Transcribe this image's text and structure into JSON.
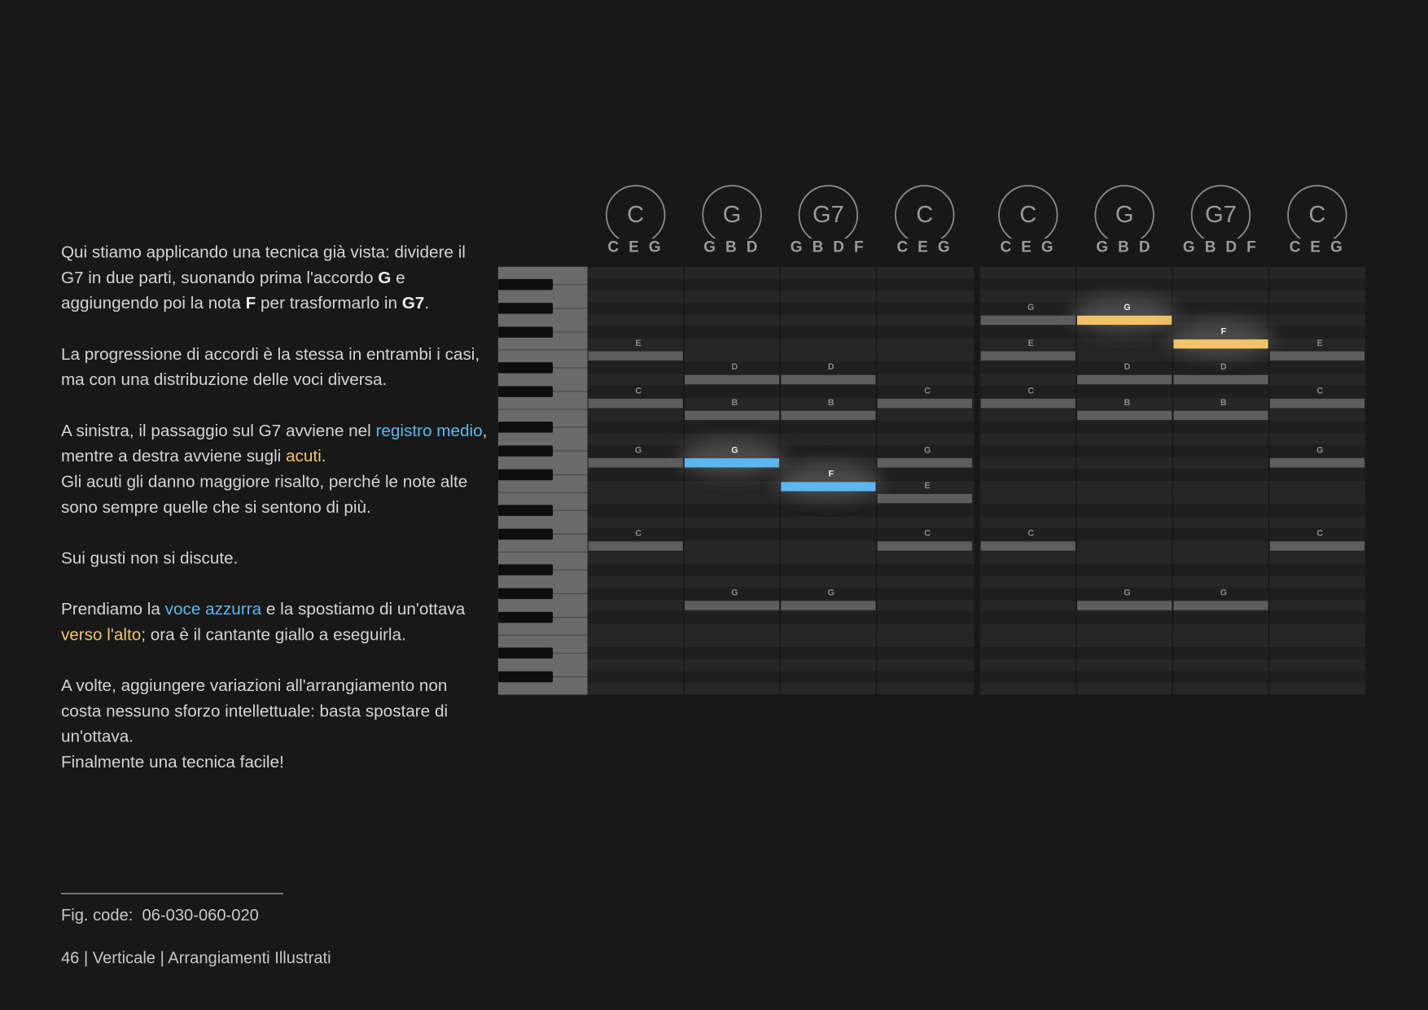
{
  "text": {
    "paragraphs": [
      {
        "lines": [
          [
            {
              "text": "Qui stiamo applicando una tecnica già vista: dividere il G7 in due parti, suonando prima l'accordo ",
              "style": "plain"
            },
            {
              "text": "G",
              "style": "bold"
            },
            {
              "text": " e aggiungendo poi la nota ",
              "style": "plain"
            },
            {
              "text": "F",
              "style": "bold"
            },
            {
              "text": " per trasformarlo in ",
              "style": "plain"
            },
            {
              "text": "G7",
              "style": "bold"
            },
            {
              "text": ".",
              "style": "plain"
            }
          ]
        ]
      },
      {
        "lines": [
          [
            {
              "text": "La progressione di accordi è la stessa in entrambi i casi, ma con una distribuzione delle voci diversa.",
              "style": "plain"
            }
          ]
        ]
      },
      {
        "lines": [
          [
            {
              "text": "A sinistra, il passaggio sul G7 avviene nel ",
              "style": "plain"
            },
            {
              "text": "registro medio",
              "style": "blue"
            },
            {
              "text": ", mentre a destra avviene sugli ",
              "style": "plain"
            },
            {
              "text": "acuti",
              "style": "yellow"
            },
            {
              "text": ".",
              "style": "plain"
            }
          ],
          [
            {
              "text": "Gli acuti gli danno maggiore risalto, perché le note alte sono sempre quelle che si sentono di più.",
              "style": "plain"
            }
          ]
        ]
      },
      {
        "lines": [
          [
            {
              "text": "Sui gusti non si discute.",
              "style": "plain"
            }
          ]
        ]
      },
      {
        "lines": [
          [
            {
              "text": "Prendiamo la ",
              "style": "plain"
            },
            {
              "text": "voce azzurra",
              "style": "blue"
            },
            {
              "text": " e la spostiamo di un'ottava ",
              "style": "plain"
            },
            {
              "text": "verso l'alto",
              "style": "yellow"
            },
            {
              "text": "; ora è il cantante giallo a eseguirla.",
              "style": "plain"
            }
          ]
        ]
      },
      {
        "lines": [
          [
            {
              "text": "A volte, aggiungere variazioni all'arrangiamento non costa nessuno sforzo intellettuale: basta spostare di un'ottava.",
              "style": "plain"
            }
          ],
          [
            {
              "text": "Finalmente una tecnica facile!",
              "style": "plain"
            }
          ]
        ]
      }
    ]
  },
  "piano_roll": {
    "pitch_lim": [
      36,
      71
    ],
    "groups": [
      {
        "columns": [
          {
            "chord": "C",
            "chord_notes": "C E G",
            "notes": [
              {
                "name": "E",
                "pitch": 64
              },
              {
                "name": "C",
                "pitch": 60
              },
              {
                "name": "G",
                "pitch": 55
              },
              {
                "name": "C",
                "pitch": 48
              }
            ]
          },
          {
            "chord": "G",
            "chord_notes": "G B D",
            "notes": [
              {
                "name": "D",
                "pitch": 62
              },
              {
                "name": "B",
                "pitch": 59
              },
              {
                "name": "G",
                "pitch": 55,
                "color": "#5ab8ee"
              },
              {
                "name": "G",
                "pitch": 43
              }
            ]
          },
          {
            "chord": "G7",
            "chord_notes": "G B D F",
            "notes": [
              {
                "name": "D",
                "pitch": 62
              },
              {
                "name": "B",
                "pitch": 59
              },
              {
                "name": "F",
                "pitch": 53,
                "color": "#5ab8ee"
              },
              {
                "name": "G",
                "pitch": 43
              }
            ]
          },
          {
            "chord": "C",
            "chord_notes": "C E G",
            "notes": [
              {
                "name": "C",
                "pitch": 60
              },
              {
                "name": "G",
                "pitch": 55
              },
              {
                "name": "E",
                "pitch": 52
              },
              {
                "name": "C",
                "pitch": 48
              }
            ]
          }
        ]
      },
      {
        "columns": [
          {
            "chord": "C",
            "chord_notes": "C E G",
            "notes": [
              {
                "name": "G",
                "pitch": 67
              },
              {
                "name": "E",
                "pitch": 64
              },
              {
                "name": "C",
                "pitch": 60
              },
              {
                "name": "C",
                "pitch": 48
              }
            ]
          },
          {
            "chord": "G",
            "chord_notes": "G B D",
            "notes": [
              {
                "name": "G",
                "pitch": 67,
                "color": "#f2c46a"
              },
              {
                "name": "D",
                "pitch": 62
              },
              {
                "name": "B",
                "pitch": 59
              },
              {
                "name": "G",
                "pitch": 43
              }
            ]
          },
          {
            "chord": "G7",
            "chord_notes": "G B D F",
            "notes": [
              {
                "name": "F",
                "pitch": 65,
                "color": "#f2c46a"
              },
              {
                "name": "D",
                "pitch": 62
              },
              {
                "name": "B",
                "pitch": 59
              },
              {
                "name": "G",
                "pitch": 43
              }
            ]
          },
          {
            "chord": "C",
            "chord_notes": "C E G",
            "notes": [
              {
                "name": "E",
                "pitch": 64
              },
              {
                "name": "C",
                "pitch": 60
              },
              {
                "name": "G",
                "pitch": 55
              },
              {
                "name": "C",
                "pitch": 48
              }
            ]
          }
        ]
      }
    ]
  },
  "footer": {
    "fig_code": "Fig. code:  06-030-060-020",
    "page_line": "46 | Verticale | Arrangiamenti Illustrati"
  }
}
